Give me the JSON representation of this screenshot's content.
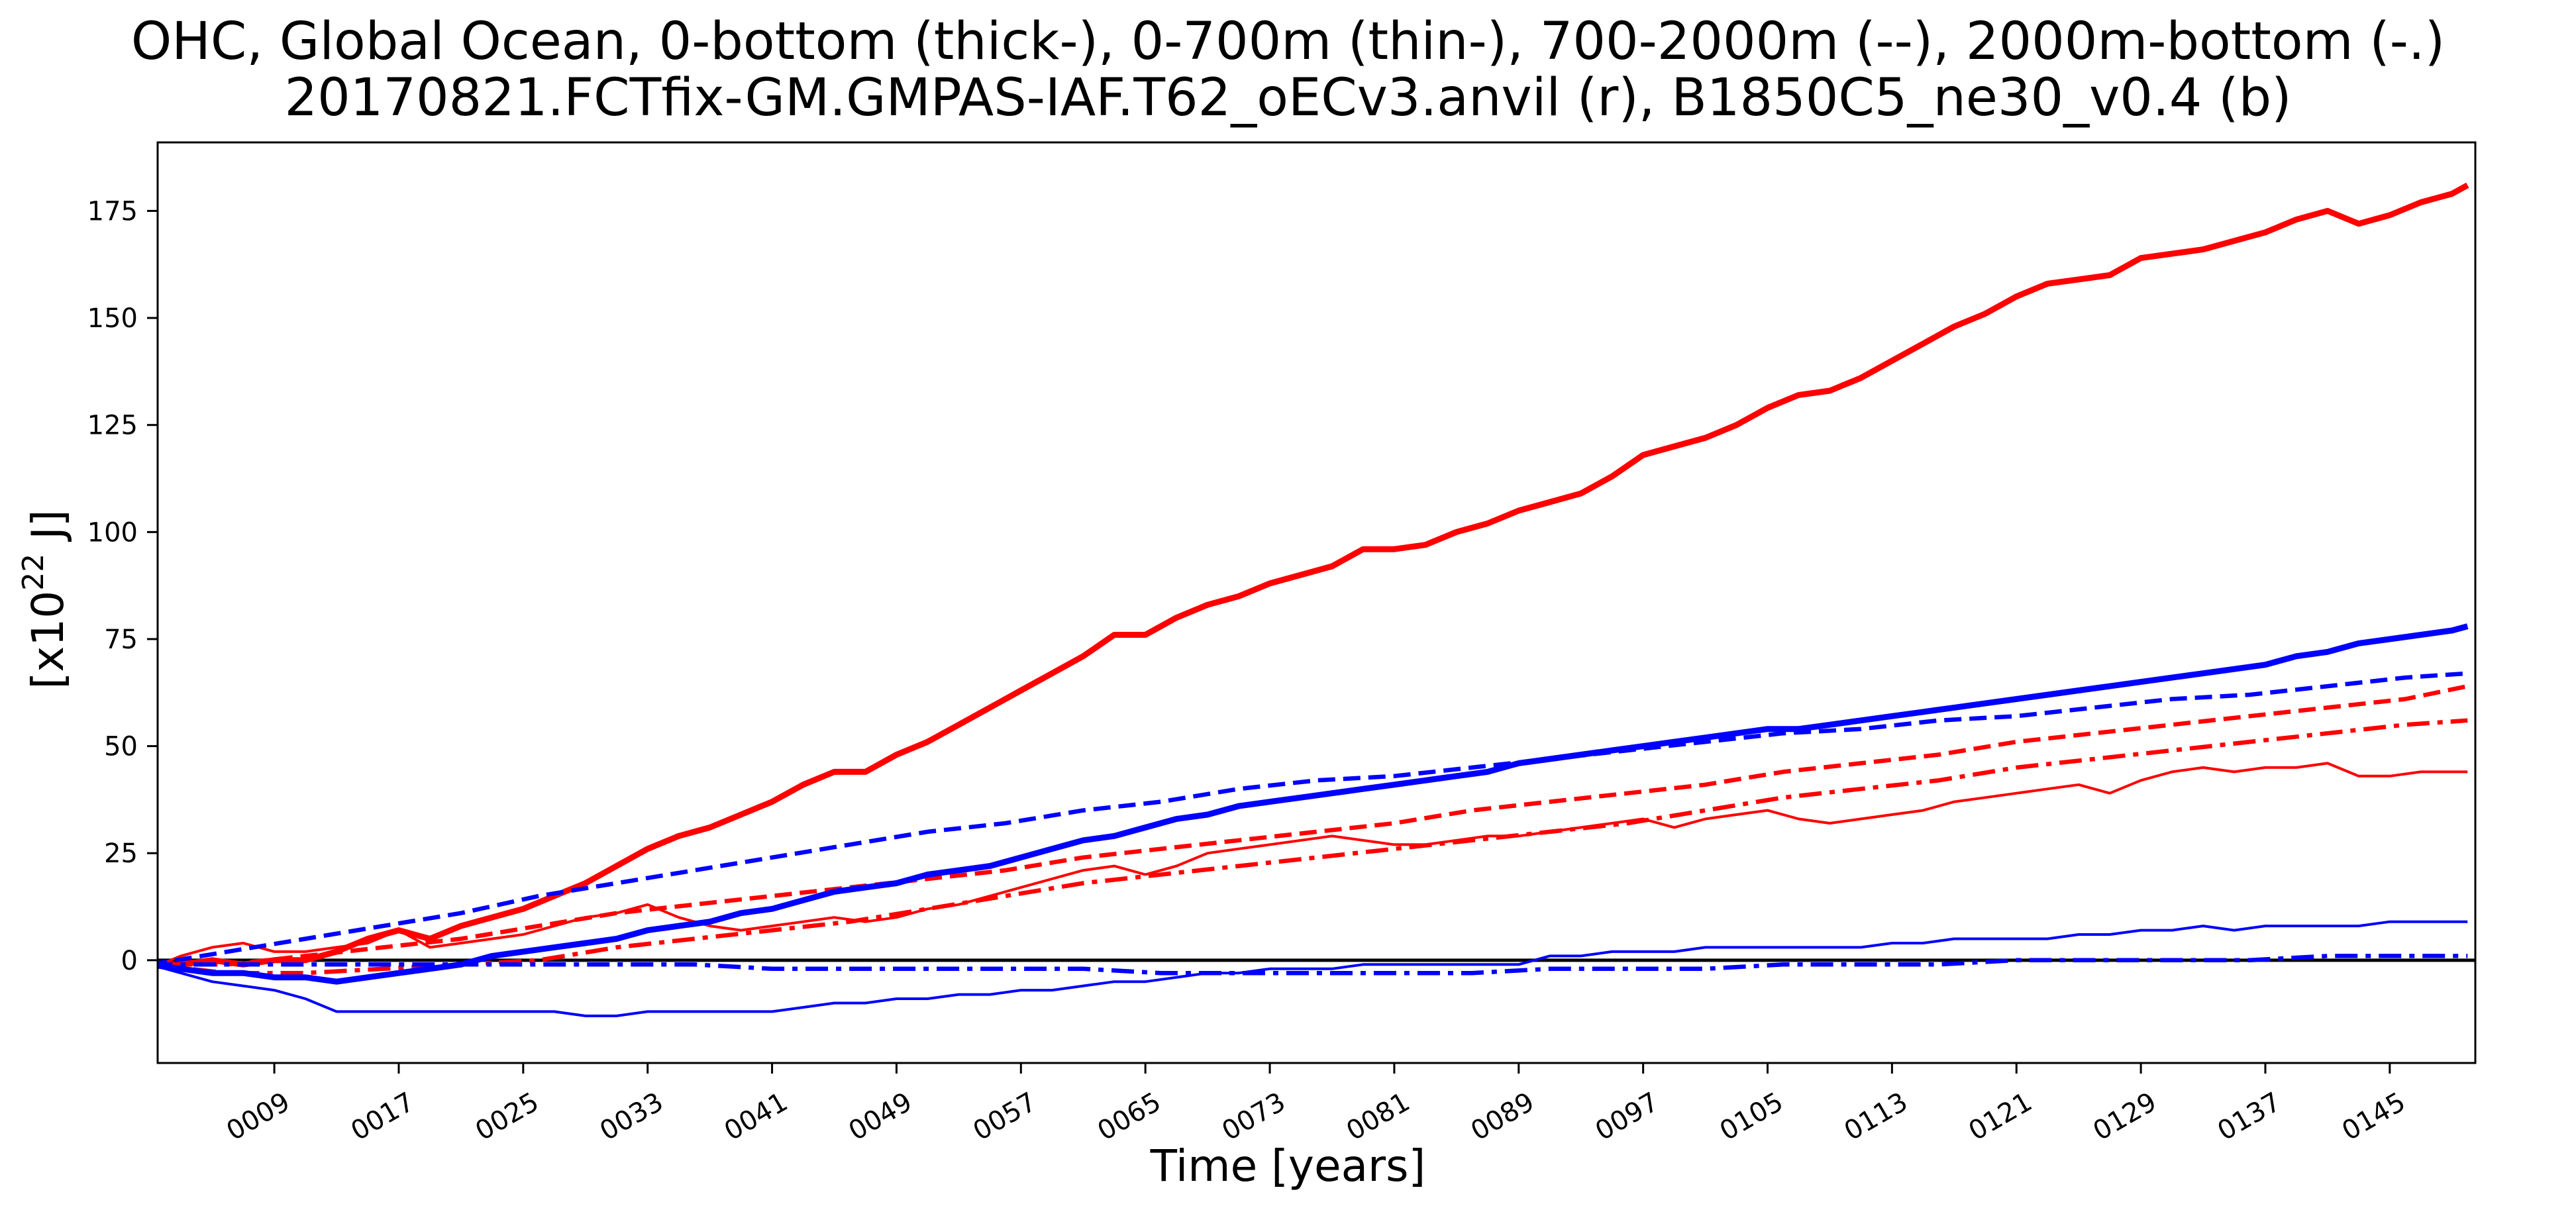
{
  "chart_data": {
    "type": "line",
    "title": "OHC, Global Ocean, 0-bottom (thick-), 0-700m (thin-), 700-2000m (--), 2000m-bottom (-.)",
    "subtitle": "20170821.FCTfix-GM.GMPAS-IAF.T62_oECv3.anvil (r), B1850C5_ne30_v0.4 (b)",
    "xlabel": "Time [years]",
    "ylabel_prefix": "[x10",
    "ylabel_exp": "22",
    "ylabel_suffix": " J]",
    "xlim": [
      1.5,
      150.5
    ],
    "ylim": [
      -24,
      191
    ],
    "xticks": [
      9,
      17,
      25,
      33,
      41,
      49,
      57,
      65,
      73,
      81,
      89,
      97,
      105,
      113,
      121,
      129,
      137,
      145
    ],
    "xtick_labels": [
      "0009",
      "0017",
      "0025",
      "0033",
      "0041",
      "0049",
      "0057",
      "0065",
      "0073",
      "0081",
      "0089",
      "0097",
      "0105",
      "0113",
      "0121",
      "0129",
      "0137",
      "0145"
    ],
    "yticks": [
      0,
      25,
      50,
      75,
      100,
      125,
      150,
      175
    ],
    "ytick_labels": [
      "0",
      "25",
      "50",
      "75",
      "100",
      "125",
      "150",
      "175"
    ],
    "zero_line": true,
    "grid": false,
    "series": [
      {
        "color": "#ff0000",
        "style": "thick-solid",
        "x": [
          1,
          3,
          5,
          7,
          9,
          11,
          13,
          15,
          17,
          19,
          21,
          23,
          25,
          27,
          29,
          31,
          33,
          35,
          37,
          39,
          41,
          43,
          45,
          47,
          49,
          51,
          53,
          55,
          57,
          59,
          61,
          63,
          65,
          67,
          69,
          71,
          73,
          75,
          77,
          79,
          81,
          83,
          85,
          87,
          89,
          91,
          93,
          95,
          97,
          99,
          101,
          103,
          105,
          107,
          109,
          111,
          113,
          115,
          117,
          119,
          121,
          123,
          125,
          127,
          129,
          131,
          133,
          135,
          137,
          139,
          141,
          143,
          145,
          147,
          149,
          150
        ],
        "y": [
          -1,
          -1,
          0,
          -1,
          0,
          0,
          2,
          5,
          7,
          5,
          8,
          10,
          12,
          15,
          18,
          22,
          26,
          29,
          31,
          34,
          37,
          41,
          44,
          44,
          48,
          51,
          55,
          59,
          63,
          67,
          71,
          76,
          76,
          80,
          83,
          85,
          88,
          90,
          92,
          96,
          96,
          97,
          100,
          102,
          105,
          107,
          109,
          113,
          118,
          120,
          122,
          125,
          129,
          132,
          133,
          136,
          140,
          144,
          148,
          151,
          155,
          158,
          159,
          160,
          164,
          165,
          166,
          168,
          170,
          173,
          175,
          172,
          174,
          177,
          179,
          181
        ]
      },
      {
        "color": "#ff0000",
        "style": "thin-solid",
        "x": [
          1,
          3,
          5,
          7,
          9,
          11,
          13,
          15,
          17,
          19,
          21,
          23,
          25,
          27,
          29,
          31,
          33,
          35,
          37,
          39,
          41,
          43,
          45,
          47,
          49,
          51,
          53,
          55,
          57,
          59,
          61,
          63,
          65,
          67,
          69,
          71,
          73,
          75,
          77,
          79,
          81,
          83,
          85,
          87,
          89,
          91,
          93,
          95,
          97,
          99,
          101,
          103,
          105,
          107,
          109,
          111,
          113,
          115,
          117,
          119,
          121,
          123,
          125,
          127,
          129,
          131,
          133,
          135,
          137,
          139,
          141,
          143,
          145,
          147,
          149,
          150
        ],
        "y": [
          -2,
          1,
          3,
          4,
          2,
          2,
          3,
          4,
          7,
          3,
          4,
          5,
          6,
          8,
          10,
          11,
          13,
          10,
          8,
          7,
          8,
          9,
          10,
          9,
          10,
          12,
          13,
          15,
          17,
          19,
          21,
          22,
          20,
          22,
          25,
          26,
          27,
          28,
          29,
          28,
          27,
          27,
          28,
          29,
          29,
          30,
          31,
          32,
          33,
          31,
          33,
          34,
          35,
          33,
          32,
          33,
          34,
          35,
          37,
          38,
          39,
          40,
          41,
          39,
          42,
          44,
          45,
          44,
          45,
          45,
          46,
          43,
          43,
          44,
          44,
          44
        ]
      },
      {
        "color": "#ff0000",
        "style": "dashed",
        "x": [
          1,
          6,
          11,
          16,
          21,
          26,
          31,
          36,
          41,
          46,
          51,
          56,
          61,
          66,
          71,
          76,
          81,
          86,
          91,
          96,
          101,
          106,
          111,
          116,
          121,
          126,
          131,
          136,
          141,
          146,
          150
        ],
        "y": [
          -1,
          -1,
          1,
          3,
          5,
          8,
          11,
          13,
          15,
          17,
          19,
          21,
          24,
          26,
          28,
          30,
          32,
          35,
          37,
          39,
          41,
          44,
          46,
          48,
          51,
          53,
          55,
          57,
          59,
          61,
          64
        ]
      },
      {
        "color": "#ff0000",
        "style": "dashdot",
        "x": [
          1,
          6,
          11,
          16,
          21,
          26,
          31,
          36,
          41,
          46,
          51,
          56,
          61,
          66,
          71,
          76,
          81,
          86,
          91,
          96,
          101,
          106,
          111,
          116,
          121,
          126,
          131,
          136,
          141,
          146,
          150
        ],
        "y": [
          -1,
          -3,
          -3,
          -2,
          -1,
          0,
          3,
          5,
          7,
          9,
          12,
          15,
          18,
          20,
          22,
          24,
          26,
          28,
          30,
          32,
          35,
          38,
          40,
          42,
          45,
          47,
          49,
          51,
          53,
          55,
          56
        ]
      },
      {
        "color": "#0000ff",
        "style": "thick-solid",
        "x": [
          1,
          3,
          5,
          7,
          9,
          11,
          13,
          15,
          17,
          19,
          21,
          23,
          25,
          27,
          29,
          31,
          33,
          35,
          37,
          39,
          41,
          43,
          45,
          47,
          49,
          51,
          53,
          55,
          57,
          59,
          61,
          63,
          65,
          67,
          69,
          71,
          73,
          75,
          77,
          79,
          81,
          83,
          85,
          87,
          89,
          91,
          93,
          95,
          97,
          99,
          101,
          103,
          105,
          107,
          109,
          111,
          113,
          115,
          117,
          119,
          121,
          123,
          125,
          127,
          129,
          131,
          133,
          135,
          137,
          139,
          141,
          143,
          145,
          147,
          149,
          150
        ],
        "y": [
          -1,
          -2,
          -3,
          -3,
          -4,
          -4,
          -5,
          -4,
          -3,
          -2,
          -1,
          1,
          2,
          3,
          4,
          5,
          7,
          8,
          9,
          11,
          12,
          14,
          16,
          17,
          18,
          20,
          21,
          22,
          24,
          26,
          28,
          29,
          31,
          33,
          34,
          36,
          37,
          38,
          39,
          40,
          41,
          42,
          43,
          44,
          46,
          47,
          48,
          49,
          50,
          51,
          52,
          53,
          54,
          54,
          55,
          56,
          57,
          58,
          59,
          60,
          61,
          62,
          63,
          64,
          65,
          66,
          67,
          68,
          69,
          71,
          72,
          74,
          75,
          76,
          77,
          78
        ]
      },
      {
        "color": "#0000ff",
        "style": "thin-solid",
        "x": [
          1,
          3,
          5,
          7,
          9,
          11,
          13,
          15,
          17,
          19,
          21,
          23,
          25,
          27,
          29,
          31,
          33,
          35,
          37,
          39,
          41,
          43,
          45,
          47,
          49,
          51,
          53,
          55,
          57,
          59,
          61,
          63,
          65,
          67,
          69,
          71,
          73,
          75,
          77,
          79,
          81,
          83,
          85,
          87,
          89,
          91,
          93,
          95,
          97,
          99,
          101,
          103,
          105,
          107,
          109,
          111,
          113,
          115,
          117,
          119,
          121,
          123,
          125,
          127,
          129,
          131,
          133,
          135,
          137,
          139,
          141,
          143,
          145,
          147,
          149,
          150
        ],
        "y": [
          -1,
          -3,
          -5,
          -6,
          -7,
          -9,
          -12,
          -12,
          -12,
          -12,
          -12,
          -12,
          -12,
          -12,
          -13,
          -13,
          -12,
          -12,
          -12,
          -12,
          -12,
          -11,
          -10,
          -10,
          -9,
          -9,
          -8,
          -8,
          -7,
          -7,
          -6,
          -5,
          -5,
          -4,
          -3,
          -3,
          -2,
          -2,
          -2,
          -1,
          -1,
          -1,
          -1,
          -1,
          -1,
          1,
          1,
          2,
          2,
          2,
          3,
          3,
          3,
          3,
          3,
          3,
          4,
          4,
          5,
          5,
          5,
          5,
          6,
          6,
          7,
          7,
          8,
          7,
          8,
          8,
          8,
          8,
          9,
          9,
          9,
          9
        ]
      },
      {
        "color": "#0000ff",
        "style": "dashed",
        "x": [
          1,
          6,
          11,
          16,
          21,
          26,
          31,
          36,
          41,
          46,
          51,
          56,
          61,
          66,
          71,
          76,
          81,
          86,
          91,
          96,
          101,
          106,
          111,
          116,
          121,
          126,
          131,
          136,
          141,
          146,
          150
        ],
        "y": [
          -1,
          2,
          5,
          8,
          11,
          15,
          18,
          21,
          24,
          27,
          30,
          32,
          35,
          37,
          40,
          42,
          43,
          45,
          47,
          49,
          51,
          53,
          54,
          56,
          57,
          59,
          61,
          62,
          64,
          66,
          67
        ]
      },
      {
        "color": "#0000ff",
        "style": "dashdot",
        "x": [
          1,
          6,
          11,
          16,
          21,
          26,
          31,
          36,
          41,
          46,
          51,
          56,
          61,
          66,
          71,
          76,
          81,
          86,
          91,
          96,
          101,
          106,
          111,
          116,
          121,
          126,
          131,
          136,
          141,
          146,
          150
        ],
        "y": [
          -1,
          -1,
          -1,
          -1,
          -1,
          -1,
          -1,
          -1,
          -2,
          -2,
          -2,
          -2,
          -2,
          -3,
          -3,
          -3,
          -3,
          -3,
          -2,
          -2,
          -2,
          -1,
          -1,
          -1,
          0,
          0,
          0,
          0,
          1,
          1,
          1
        ]
      }
    ]
  }
}
